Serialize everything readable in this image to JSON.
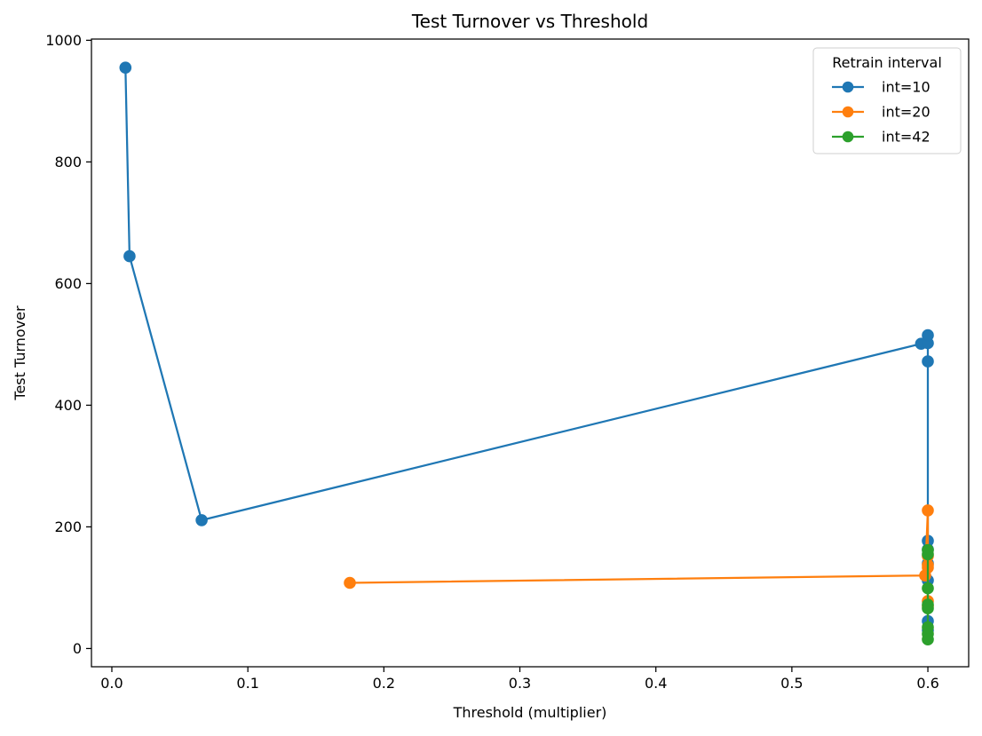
{
  "chart_data": {
    "type": "line",
    "title": "Test Turnover vs Threshold",
    "xlabel": "Threshold (multiplier)",
    "ylabel": "Test Turnover",
    "xlim": [
      -0.015,
      0.63
    ],
    "ylim": [
      -30,
      1002
    ],
    "xticks": [
      0.0,
      0.1,
      0.2,
      0.3,
      0.4,
      0.5,
      0.6
    ],
    "xtick_labels": [
      "0.0",
      "0.1",
      "0.2",
      "0.3",
      "0.4",
      "0.5",
      "0.6"
    ],
    "yticks": [
      0,
      200,
      400,
      600,
      800,
      1000
    ],
    "ytick_labels": [
      "0",
      "200",
      "400",
      "600",
      "800",
      "1000"
    ],
    "grid": false,
    "legend": {
      "title": "Retrain interval",
      "placement": "top-right"
    },
    "series": [
      {
        "name": "int=10",
        "color": "#1f77b4",
        "marker": "circle",
        "points": [
          {
            "x": 0.01,
            "y": 955
          },
          {
            "x": 0.013,
            "y": 645
          },
          {
            "x": 0.066,
            "y": 211
          },
          {
            "x": 0.595,
            "y": 501
          },
          {
            "x": 0.6,
            "y": 502
          },
          {
            "x": 0.6,
            "y": 515
          },
          {
            "x": 0.6,
            "y": 472
          },
          {
            "x": 0.6,
            "y": 177
          },
          {
            "x": 0.6,
            "y": 163
          },
          {
            "x": 0.6,
            "y": 140
          },
          {
            "x": 0.6,
            "y": 112
          },
          {
            "x": 0.6,
            "y": 45
          },
          {
            "x": 0.6,
            "y": 30
          }
        ]
      },
      {
        "name": "int=20",
        "color": "#ff7f0e",
        "marker": "circle",
        "points": [
          {
            "x": 0.175,
            "y": 108
          },
          {
            "x": 0.598,
            "y": 120
          },
          {
            "x": 0.6,
            "y": 227
          },
          {
            "x": 0.6,
            "y": 152
          },
          {
            "x": 0.6,
            "y": 137
          },
          {
            "x": 0.6,
            "y": 133
          },
          {
            "x": 0.6,
            "y": 78
          },
          {
            "x": 0.6,
            "y": 70
          }
        ]
      },
      {
        "name": "int=42",
        "color": "#2ca02c",
        "marker": "circle",
        "points": [
          {
            "x": 0.6,
            "y": 162
          },
          {
            "x": 0.6,
            "y": 155
          },
          {
            "x": 0.6,
            "y": 99
          },
          {
            "x": 0.6,
            "y": 72
          },
          {
            "x": 0.6,
            "y": 66
          },
          {
            "x": 0.6,
            "y": 35
          },
          {
            "x": 0.6,
            "y": 24
          },
          {
            "x": 0.6,
            "y": 15
          }
        ]
      }
    ]
  }
}
